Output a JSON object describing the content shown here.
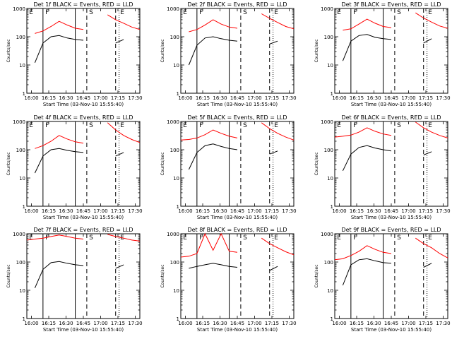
{
  "figure": {
    "xlabel_common": "Start Time (03-Nov-10 15:55:40)",
    "ylabel_common": "Counts/sec",
    "ytick_labels": [
      "1",
      "10",
      "100",
      "1000"
    ],
    "xtick_labels": [
      "16:00",
      "16:15",
      "16:30",
      "16:45",
      "17:00",
      "17:15",
      "17:30"
    ],
    "markers": [
      "E",
      "F",
      "S",
      "E"
    ],
    "colors": {
      "events": "#000000",
      "lld": "#ff0000",
      "axes": "#000000",
      "background": "#ffffff"
    }
  },
  "chart_data": [
    {
      "type": "line",
      "title": "Det 1f BLACK = Events, RED = LLD",
      "xlabel": "Start Time (03-Nov-10 15:55:40)",
      "ylabel": "Counts/sec",
      "yscale": "log",
      "ylim": [
        1,
        1000
      ],
      "x": [
        "15:56",
        "16:03",
        "16:10",
        "16:17",
        "16:24",
        "16:31",
        "16:38",
        "16:45",
        "16:52",
        "16:59",
        "17:06",
        "17:13",
        "17:20",
        "17:27",
        "17:34"
      ],
      "series": [
        {
          "name": "Events",
          "values": [
            null,
            12,
            60,
            100,
            110,
            90,
            80,
            75,
            null,
            null,
            null,
            60,
            80,
            null,
            null
          ]
        },
        {
          "name": "LLD",
          "values": [
            null,
            130,
            160,
            230,
            350,
            260,
            200,
            180,
            null,
            null,
            600,
            400,
            300,
            220,
            180
          ]
        }
      ],
      "markers": [
        "E",
        "F",
        "S",
        "E"
      ]
    },
    {
      "type": "line",
      "title": "Det 2f BLACK = Events, RED = LLD",
      "xlabel": "Start Time (03-Nov-10 15:55:40)",
      "ylabel": "Counts/sec",
      "yscale": "log",
      "ylim": [
        1,
        1000
      ],
      "x": [
        "15:56",
        "16:03",
        "16:10",
        "16:17",
        "16:24",
        "16:31",
        "16:38",
        "16:45",
        "16:52",
        "16:59",
        "17:06",
        "17:13",
        "17:20",
        "17:27",
        "17:34"
      ],
      "series": [
        {
          "name": "Events",
          "values": [
            null,
            10,
            50,
            90,
            100,
            85,
            75,
            70,
            null,
            null,
            null,
            55,
            70,
            null,
            null
          ]
        },
        {
          "name": "LLD",
          "values": [
            null,
            150,
            180,
            260,
            400,
            280,
            220,
            200,
            null,
            null,
            650,
            450,
            320,
            230,
            190
          ]
        }
      ],
      "markers": [
        "E",
        "F",
        "S",
        "E"
      ]
    },
    {
      "type": "line",
      "title": "Det 3f BLACK = Events, RED = LLD",
      "xlabel": "Start Time (03-Nov-10 15:55:40)",
      "ylabel": "Counts/sec",
      "yscale": "log",
      "ylim": [
        1,
        1000
      ],
      "x": [
        "15:56",
        "16:03",
        "16:10",
        "16:17",
        "16:24",
        "16:31",
        "16:38",
        "16:45",
        "16:52",
        "16:59",
        "17:06",
        "17:13",
        "17:20",
        "17:27",
        "17:34"
      ],
      "series": [
        {
          "name": "Events",
          "values": [
            null,
            14,
            70,
            110,
            120,
            95,
            85,
            80,
            null,
            null,
            null,
            60,
            85,
            null,
            null
          ]
        },
        {
          "name": "LLD",
          "values": [
            null,
            170,
            190,
            280,
            420,
            300,
            230,
            210,
            null,
            null,
            700,
            460,
            330,
            240,
            200
          ]
        }
      ],
      "markers": [
        "E",
        "F",
        "S",
        "E"
      ]
    },
    {
      "type": "line",
      "title": "Det 4f BLACK = Events, RED = LLD",
      "xlabel": "Start Time (03-Nov-10 15:55:40)",
      "ylabel": "Counts/sec",
      "yscale": "log",
      "ylim": [
        1,
        1000
      ],
      "x": [
        "15:56",
        "16:03",
        "16:10",
        "16:17",
        "16:24",
        "16:31",
        "16:38",
        "16:45",
        "16:52",
        "16:59",
        "17:06",
        "17:13",
        "17:20",
        "17:27",
        "17:34"
      ],
      "series": [
        {
          "name": "Events",
          "values": [
            null,
            15,
            60,
            100,
            110,
            95,
            85,
            80,
            null,
            null,
            null,
            60,
            80,
            null,
            null
          ]
        },
        {
          "name": "LLD",
          "values": [
            null,
            110,
            140,
            200,
            320,
            240,
            190,
            170,
            null,
            null,
            900,
            500,
            320,
            230,
            180
          ]
        }
      ],
      "markers": [
        "E",
        "F",
        "S",
        "E"
      ]
    },
    {
      "type": "line",
      "title": "Det 5f BLACK = Events, RED = LLD",
      "xlabel": "Start Time (03-Nov-10 15:55:40)",
      "ylabel": "Counts/sec",
      "yscale": "log",
      "ylim": [
        1,
        1000
      ],
      "x": [
        "15:56",
        "16:03",
        "16:10",
        "16:17",
        "16:24",
        "16:31",
        "16:38",
        "16:45",
        "16:52",
        "16:59",
        "17:06",
        "17:13",
        "17:20",
        "17:27",
        "17:34"
      ],
      "series": [
        {
          "name": "Events",
          "values": [
            null,
            20,
            80,
            140,
            160,
            130,
            110,
            100,
            null,
            null,
            null,
            70,
            90,
            null,
            null
          ]
        },
        {
          "name": "LLD",
          "values": [
            220,
            230,
            260,
            340,
            500,
            380,
            300,
            260,
            null,
            null,
            900,
            560,
            380,
            280,
            220
          ]
        }
      ],
      "markers": [
        "E",
        "F",
        "S",
        "E"
      ]
    },
    {
      "type": "line",
      "title": "Det 6f BLACK = Events, RED = LLD",
      "xlabel": "Start Time (03-Nov-10 15:55:40)",
      "ylabel": "Counts/sec",
      "yscale": "log",
      "ylim": [
        1,
        1000
      ],
      "x": [
        "15:56",
        "16:03",
        "16:10",
        "16:17",
        "16:24",
        "16:31",
        "16:38",
        "16:45",
        "16:52",
        "16:59",
        "17:06",
        "17:13",
        "17:20",
        "17:27",
        "17:34"
      ],
      "series": [
        {
          "name": "Events",
          "values": [
            null,
            18,
            70,
            120,
            140,
            115,
            100,
            90,
            null,
            null,
            null,
            65,
            85,
            null,
            null
          ]
        },
        {
          "name": "LLD",
          "values": [
            280,
            300,
            330,
            420,
            600,
            450,
            360,
            320,
            null,
            null,
            950,
            600,
            420,
            320,
            260
          ]
        }
      ],
      "markers": [
        "E",
        "F",
        "S",
        "E"
      ]
    },
    {
      "type": "line",
      "title": "Det 7f BLACK = Events, RED = LLD",
      "xlabel": "Start Time (03-Nov-10 15:55:40)",
      "ylabel": "Counts/sec",
      "yscale": "log",
      "ylim": [
        1,
        1000
      ],
      "x": [
        "15:56",
        "16:03",
        "16:10",
        "16:17",
        "16:24",
        "16:31",
        "16:38",
        "16:45",
        "16:52",
        "16:59",
        "17:06",
        "17:13",
        "17:20",
        "17:27",
        "17:34"
      ],
      "series": [
        {
          "name": "Events",
          "values": [
            null,
            12,
            55,
            95,
            105,
            90,
            80,
            75,
            null,
            null,
            null,
            60,
            80,
            null,
            null
          ]
        },
        {
          "name": "LLD",
          "values": [
            600,
            650,
            700,
            800,
            900,
            800,
            700,
            650,
            null,
            null,
            950,
            800,
            700,
            600,
            550
          ]
        }
      ],
      "markers": [
        "E",
        "F",
        "S",
        "E"
      ]
    },
    {
      "type": "line",
      "title": "Det 8f BLACK = Events, RED = LLD",
      "xlabel": "Start Time (03-Nov-10 15:55:40)",
      "ylabel": "Counts/sec",
      "yscale": "log",
      "ylim": [
        1,
        1000
      ],
      "x": [
        "15:56",
        "16:03",
        "16:10",
        "16:17",
        "16:24",
        "16:31",
        "16:38",
        "16:45",
        "16:52",
        "16:59",
        "17:06",
        "17:13",
        "17:20",
        "17:27",
        "17:34"
      ],
      "series": [
        {
          "name": "Events",
          "values": [
            null,
            60,
            70,
            80,
            90,
            80,
            70,
            65,
            null,
            null,
            null,
            50,
            70,
            null,
            null
          ]
        },
        {
          "name": "LLD",
          "values": [
            150,
            160,
            200,
            1000,
            260,
            1000,
            240,
            220,
            null,
            null,
            700,
            450,
            320,
            230,
            180
          ]
        }
      ],
      "markers": [
        "E",
        "F",
        "S",
        "E"
      ]
    },
    {
      "type": "line",
      "title": "Det 9f BLACK = Events, RED = LLD",
      "xlabel": "Start Time (03-Nov-10 15:55:40)",
      "ylabel": "Counts/sec",
      "yscale": "log",
      "ylim": [
        1,
        1000
      ],
      "x": [
        "15:56",
        "16:03",
        "16:10",
        "16:17",
        "16:24",
        "16:31",
        "16:38",
        "16:45",
        "16:52",
        "16:59",
        "17:06",
        "17:13",
        "17:20",
        "17:27",
        "17:34"
      ],
      "series": [
        {
          "name": "Events",
          "values": [
            null,
            15,
            80,
            120,
            130,
            110,
            95,
            90,
            null,
            null,
            null,
            65,
            90,
            null,
            null
          ]
        },
        {
          "name": "LLD",
          "values": [
            120,
            130,
            170,
            240,
            380,
            280,
            220,
            200,
            null,
            null,
            700,
            450,
            320,
            200,
            140
          ]
        }
      ],
      "markers": [
        "E",
        "F",
        "S",
        "E"
      ]
    }
  ]
}
